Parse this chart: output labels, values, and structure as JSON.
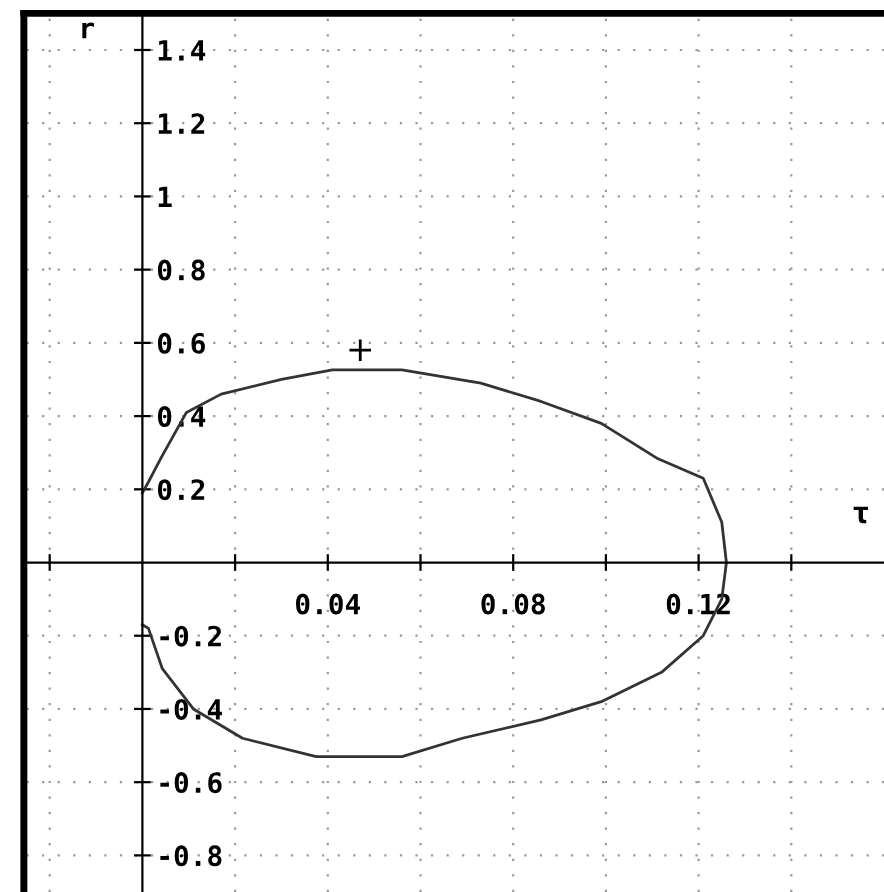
{
  "chart_data": {
    "type": "line",
    "xlabel": "τ",
    "ylabel": "r",
    "xlim": [
      -0.025,
      0.16
    ],
    "ylim": [
      -0.9,
      1.5
    ],
    "xticks": [
      {
        "value": -0.02,
        "label": null
      },
      {
        "value": 0.02,
        "label": null
      },
      0.04,
      {
        "value": 0.06,
        "label": null
      },
      0.08,
      {
        "value": 0.1,
        "label": null
      },
      0.12,
      {
        "value": 0.14,
        "label": null
      }
    ],
    "yticks": [
      -0.8,
      -0.6,
      -0.4,
      -0.2,
      0.2,
      0.4,
      0.6,
      0.8,
      1,
      1.2,
      1.4
    ],
    "grid": true,
    "line_style": "solid",
    "series": [
      {
        "color": "#333333",
        "marker": "none",
        "x": [
          0,
          0.0013,
          0.004,
          0.0095,
          0.017,
          0.03,
          0.041,
          0.056,
          0.073,
          0.086,
          0.099,
          0.111,
          0.121,
          0.125,
          0.126,
          0.125,
          0.121,
          0.112,
          0.099,
          0.086,
          0.069,
          0.056,
          0.0375,
          0.0216,
          0.011,
          0.0043,
          0.0013,
          0
        ],
        "values": [
          0.19,
          0.22,
          0.285,
          0.41,
          0.46,
          0.5,
          0.526,
          0.526,
          0.49,
          0.44,
          0.38,
          0.285,
          0.23,
          0.11,
          0,
          -0.1,
          -0.2,
          -0.3,
          -0.38,
          -0.43,
          -0.48,
          -0.53,
          -0.53,
          -0.48,
          -0.4,
          -0.29,
          -0.18,
          -0.17
        ]
      },
      {
        "type": "scatter",
        "color": "#000000",
        "marker": "cross",
        "x": [
          0.047
        ],
        "values": [
          0.58
        ]
      }
    ]
  }
}
